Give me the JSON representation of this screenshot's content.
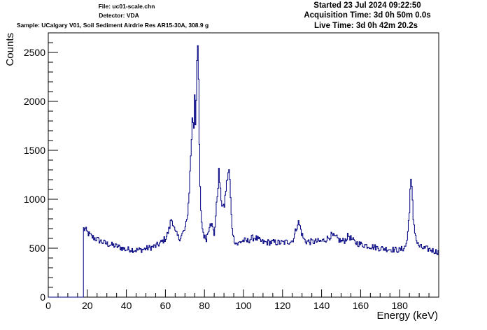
{
  "header": {
    "file": "File: uc01-scale.chn",
    "detector": "Detector: VDA",
    "sample": "Sample: UCalgary V01, Soil Sediment Airdrie Res AR15-30A, 308.9 g",
    "started": "Started 23 Jul 2024 09:22:50",
    "acquisition": "Acquisition Time: 3d 0h 50m 0.0s",
    "live": "Live Time: 3d 0h 42m 20.2s"
  },
  "colors": {
    "series": "#000080",
    "axis": "#000000",
    "background": "#ffffff"
  },
  "chart_data": {
    "type": "line",
    "xlabel": "Energy (keV)",
    "ylabel": "Counts",
    "xlim": [
      0,
      200
    ],
    "ylim": [
      0,
      2700
    ],
    "x_ticks": [
      0,
      20,
      40,
      60,
      80,
      100,
      120,
      140,
      160,
      180
    ],
    "y_ticks": [
      0,
      500,
      1000,
      1500,
      2000,
      2500
    ],
    "grid": false,
    "legend": "none",
    "series": [
      {
        "x": [
          0,
          17.8,
          18,
          19,
          20,
          22,
          25,
          28,
          30,
          33,
          35,
          38,
          40,
          42,
          45,
          48,
          50,
          52,
          55,
          58,
          60,
          61,
          62,
          63,
          64,
          65,
          67,
          68,
          70,
          71,
          72,
          73,
          74,
          74.5,
          75,
          75.5,
          76,
          76.5,
          77,
          77.5,
          78,
          79,
          80,
          81,
          82,
          83,
          84,
          85,
          86,
          87,
          87.5,
          88,
          89,
          90,
          91,
          92,
          92.5,
          93,
          93.5,
          94,
          95,
          96,
          97,
          98,
          100,
          102,
          104,
          106,
          108,
          110,
          115,
          120,
          125,
          126,
          127,
          128,
          129,
          130,
          131,
          132,
          135,
          140,
          143,
          145,
          148,
          150,
          152,
          153,
          154,
          155,
          157,
          160,
          165,
          170,
          175,
          180,
          182,
          183,
          184,
          185,
          185.5,
          186,
          186.5,
          187,
          188,
          189,
          190,
          192,
          195,
          198,
          200
        ],
        "values": [
          0,
          0,
          700,
          690,
          660,
          620,
          590,
          560,
          545,
          530,
          520,
          500,
          485,
          490,
          480,
          485,
          495,
          505,
          520,
          560,
          600,
          640,
          700,
          800,
          760,
          660,
          600,
          620,
          690,
          780,
          1000,
          1450,
          1900,
          1650,
          2100,
          1700,
          2300,
          2580,
          2200,
          1400,
          900,
          700,
          610,
          600,
          680,
          780,
          720,
          640,
          880,
          1150,
          1310,
          1100,
          950,
          900,
          1100,
          1250,
          1300,
          1200,
          950,
          750,
          600,
          560,
          540,
          560,
          580,
          570,
          600,
          610,
          580,
          560,
          560,
          555,
          575,
          620,
          700,
          770,
          720,
          640,
          590,
          570,
          565,
          570,
          600,
          630,
          600,
          570,
          580,
          610,
          630,
          600,
          560,
          540,
          520,
          500,
          490,
          480,
          500,
          520,
          600,
          900,
          1150,
          1180,
          1000,
          800,
          650,
          550,
          520,
          500,
          490,
          470,
          460
        ]
      }
    ]
  }
}
